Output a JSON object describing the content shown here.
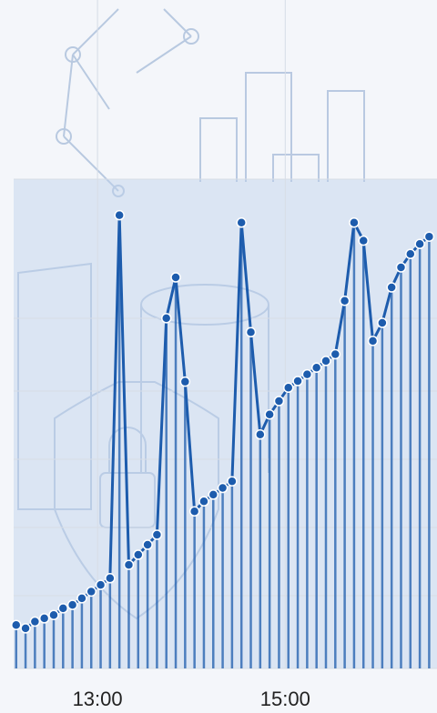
{
  "chart_data": {
    "type": "line",
    "x": [
      728,
      734,
      740,
      746,
      752,
      758,
      764,
      770,
      776,
      782,
      788,
      794,
      800,
      806,
      812,
      818,
      824,
      830,
      836,
      842,
      848,
      854,
      860,
      866,
      872,
      878,
      884,
      890,
      896,
      902,
      908,
      914,
      920,
      926,
      932,
      938,
      944,
      950,
      956,
      962,
      968,
      974,
      980,
      986,
      992
    ],
    "series": [
      {
        "color": "#1d5cad",
        "values": [
          6.5,
          6,
          7,
          7.5,
          8,
          9,
          9.5,
          10.5,
          11.5,
          12.5,
          13.5,
          67.8,
          15.5,
          17,
          18.5,
          20,
          52.4,
          58.5,
          42.9,
          23.5,
          25,
          26,
          27,
          28,
          66.7,
          50.3,
          35,
          38,
          40,
          42,
          43,
          44,
          45,
          46,
          47,
          55,
          66.7,
          64,
          49,
          51.7,
          57,
          60,
          62,
          63.5,
          64.6
        ]
      }
    ],
    "xlim": [
      726.4,
      997
    ],
    "xticks": [
      {
        "value": 780,
        "label": "13:00"
      },
      {
        "value": 900,
        "label": "15:00"
      }
    ],
    "ylim": [
      0,
      100
    ]
  }
}
